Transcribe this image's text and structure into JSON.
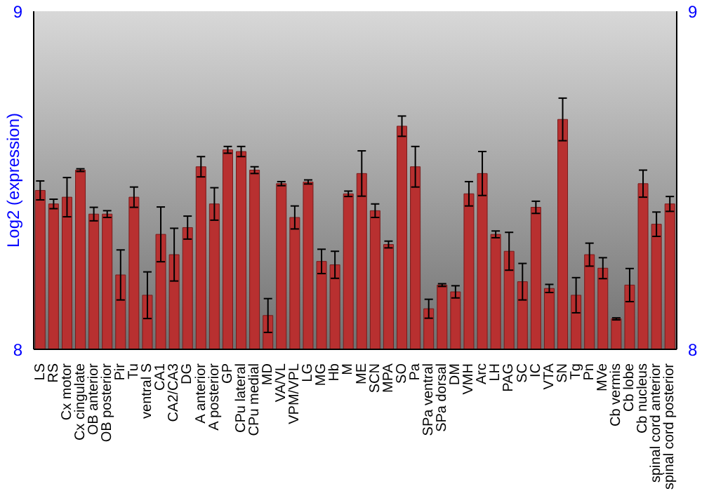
{
  "chart_data": {
    "type": "bar",
    "ylabel": "Log2 (expression)",
    "categories": [
      "LS",
      "RS",
      "Cx motor",
      "Cx cingulate",
      "OB anterior",
      "OB posterior",
      "Pir",
      "Tu",
      "ventral S",
      "CA1",
      "CA2/CA3",
      "DG",
      "A anterior",
      "A posterior",
      "GP",
      "CPu lateral",
      "CPu medial",
      "MD",
      "VA/VL",
      "VPM/VPL",
      "LG",
      "MG",
      "Hb",
      "M",
      "ME",
      "SCN",
      "MPA",
      "SO",
      "Pa",
      "SPa ventral",
      "SPa dorsal",
      "DM",
      "VMH",
      "Arc",
      "LH",
      "PAG",
      "SC",
      "IC",
      "VTA",
      "SN",
      "Tg",
      "Pn",
      "MVe",
      "Cb vermis",
      "Cb lobe",
      "Cb nucleus",
      "spinal cord anterior",
      "spinal cord posterior"
    ],
    "series": [
      {
        "color": "#b83030",
        "values": [
          8.47,
          8.43,
          8.45,
          8.53,
          8.4,
          8.4,
          8.22,
          8.45,
          8.16,
          8.34,
          8.28,
          8.36,
          8.54,
          8.43,
          8.59,
          8.585,
          8.53,
          8.1,
          8.49,
          8.39,
          8.495,
          8.26,
          8.25,
          8.46,
          8.52,
          8.41,
          8.31,
          8.66,
          8.54,
          8.12,
          8.19,
          8.17,
          8.46,
          8.52,
          8.34,
          8.29,
          8.2,
          8.42,
          8.18,
          8.68,
          8.16,
          8.28,
          8.24,
          8.09,
          8.19,
          8.49,
          8.37,
          8.43
        ],
        "errors": [
          0.028,
          0.014,
          0.058,
          0.004,
          0.02,
          0.01,
          0.074,
          0.03,
          0.069,
          0.081,
          0.078,
          0.034,
          0.03,
          0.048,
          0.01,
          0.015,
          0.01,
          0.05,
          0.006,
          0.034,
          0.006,
          0.036,
          0.04,
          0.008,
          0.067,
          0.02,
          0.01,
          0.03,
          0.06,
          0.028,
          0.004,
          0.018,
          0.036,
          0.065,
          0.01,
          0.056,
          0.054,
          0.018,
          0.012,
          0.063,
          0.052,
          0.034,
          0.031,
          0.003,
          0.049,
          0.04,
          0.036,
          0.022
        ]
      }
    ],
    "ylim": [
      8,
      9
    ],
    "yticks": [
      8,
      9
    ],
    "y2lim": [
      8,
      9
    ],
    "y2ticks": [
      8,
      9
    ],
    "grid": false,
    "legend": false
  }
}
